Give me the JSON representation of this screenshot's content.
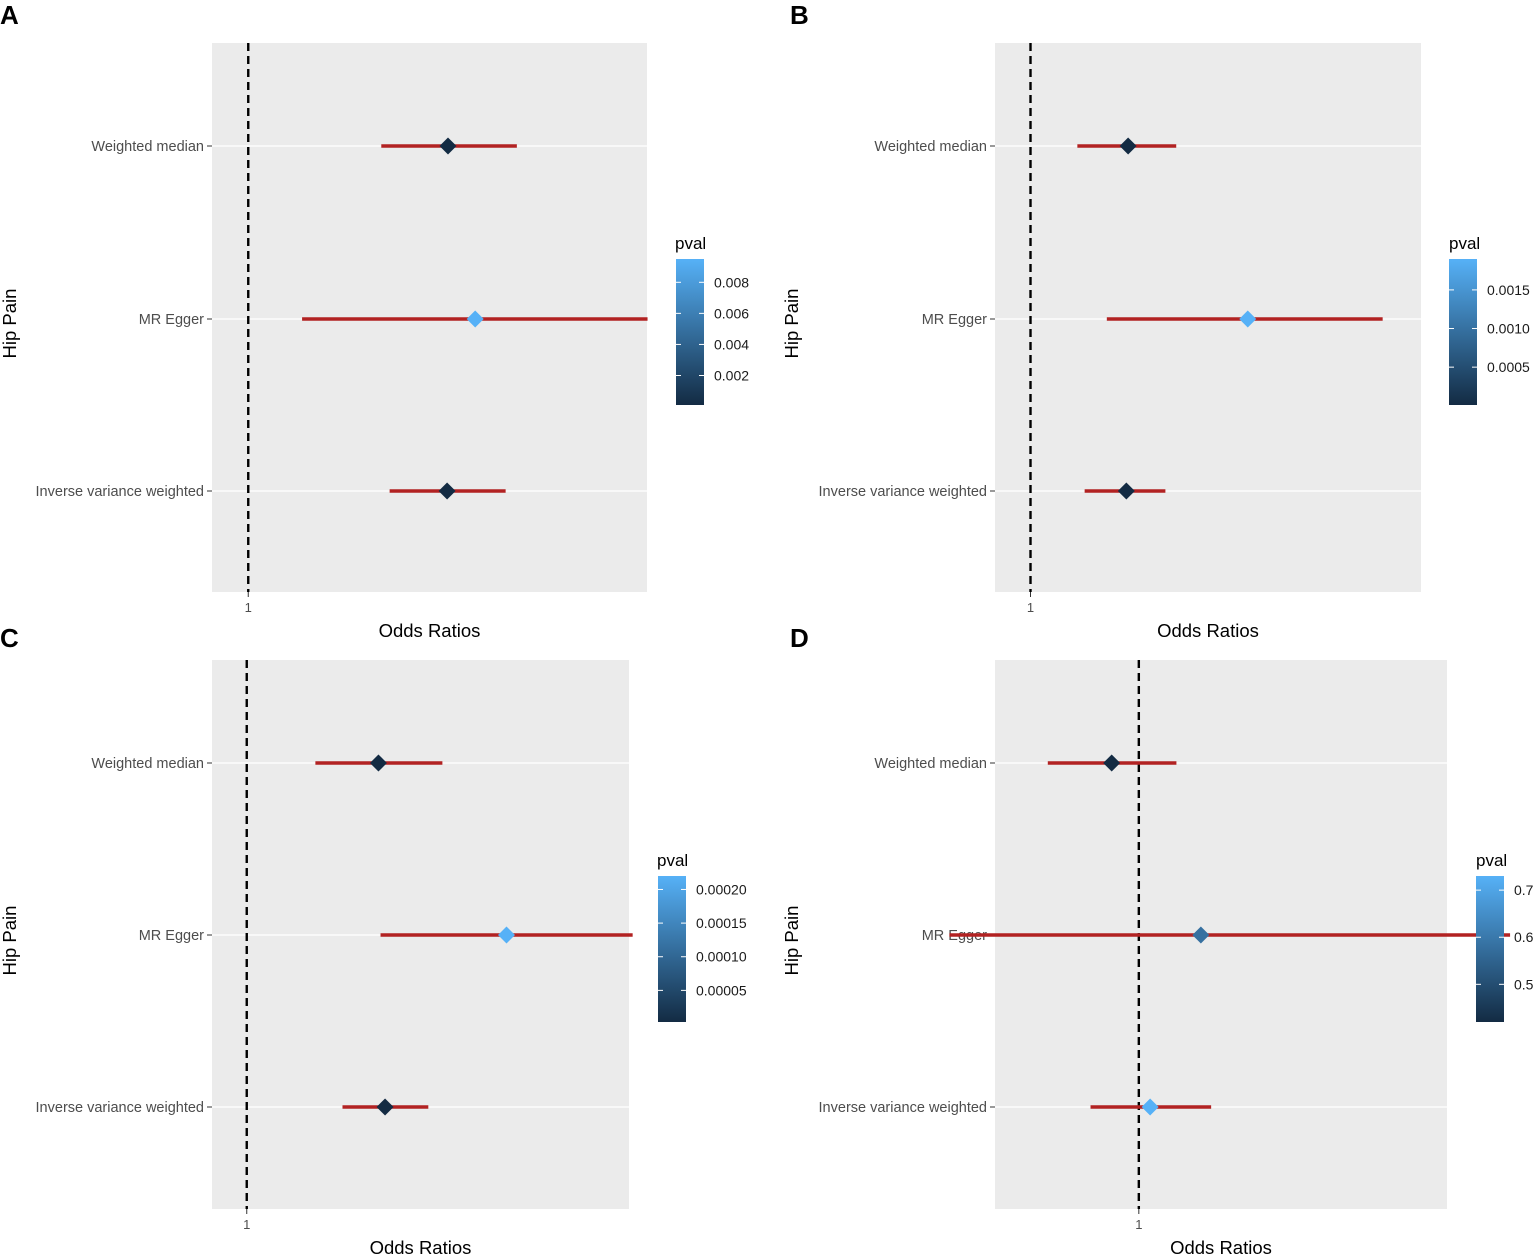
{
  "figure": {
    "description_panels": [
      "A",
      "B",
      "C",
      "D"
    ]
  },
  "colors": {
    "panel_bg": "#ebebeb",
    "grid": "#ffffff",
    "ci_line": "#b22222",
    "low_color": "#132b43",
    "high_color": "#56b1f7",
    "ref_line": "#000000"
  },
  "chart_data": [
    {
      "type": "forest",
      "panel": "A",
      "ylabel": "Hip Pain",
      "xlabel": "Odds Ratios",
      "categories": [
        "Weighted median",
        "MR Egger",
        "Inverse variance weighted"
      ],
      "x_tick_labels": [
        "1"
      ],
      "xlim": [
        0.98,
        1.22
      ],
      "or": [
        1.1102,
        1.1252,
        1.1097
      ],
      "ci_low": [
        1.0734,
        1.0297,
        1.078
      ],
      "ci_high": [
        1.1482,
        1.2203,
        1.142
      ],
      "pval": [
        0.0001,
        0.0095,
        0.0001
      ],
      "legend": {
        "title": "pval",
        "ticks": [
          0.002,
          0.004,
          0.006,
          0.008
        ],
        "tick_labels": [
          "0.002",
          "0.004",
          "0.006",
          "0.008"
        ],
        "range": [
          0.0001,
          0.0095
        ]
      }
    },
    {
      "type": "forest",
      "panel": "B",
      "ylabel": "Hip Pain",
      "xlabel": "Odds Ratios",
      "categories": [
        "Weighted median",
        "MR Egger",
        "Inverse variance weighted"
      ],
      "x_tick_labels": [
        "1"
      ],
      "xlim": [
        0.98,
        1.22
      ],
      "or": [
        1.055,
        1.1224,
        1.054
      ],
      "ci_low": [
        1.0264,
        1.043,
        1.0305
      ],
      "ci_high": [
        1.0821,
        1.1984,
        1.076
      ],
      "pval": [
        1e-05,
        0.0019,
        1e-05
      ],
      "legend": {
        "title": "pval",
        "ticks": [
          0.0005,
          0.001,
          0.0015
        ],
        "tick_labels": [
          "0.0005",
          "0.0010",
          "0.0015"
        ],
        "range": [
          1e-05,
          0.0019
        ]
      }
    },
    {
      "type": "forest",
      "panel": "C",
      "ylabel": "Hip Pain",
      "xlabel": "Odds Ratios",
      "categories": [
        "Weighted median",
        "MR Egger",
        "Inverse variance weighted"
      ],
      "x_tick_labels": [
        "1"
      ],
      "xlim": [
        0.98,
        1.22
      ],
      "or": [
        1.0758,
        1.1495,
        1.0796
      ],
      "ci_low": [
        1.0395,
        1.077,
        1.0551
      ],
      "ci_high": [
        1.1126,
        1.2221,
        1.1045
      ],
      "pval": [
        3e-06,
        0.00022,
        3e-06
      ],
      "legend": {
        "title": "pval",
        "ticks": [
          5e-05,
          0.0001,
          0.00015,
          0.0002
        ],
        "tick_labels": [
          "0.00005",
          "0.00010",
          "0.00015",
          "0.00020"
        ],
        "range": [
          3e-06,
          0.00022
        ]
      }
    },
    {
      "type": "forest",
      "panel": "D",
      "ylabel": "Hip Pain",
      "xlabel": "Odds Ratios",
      "categories": [
        "Weighted median",
        "MR Egger",
        "Inverse variance weighted"
      ],
      "x_tick_labels": [
        "1"
      ],
      "xlim": [
        0.93,
        1.15
      ],
      "or": [
        0.9868,
        1.0302,
        1.0055
      ],
      "ci_low": [
        0.9557,
        0.9078,
        0.9765
      ],
      "ci_high": [
        1.0183,
        1.1807,
        1.0352
      ],
      "pval": [
        0.42,
        0.58,
        0.73
      ],
      "legend": {
        "title": "pval",
        "ticks": [
          0.5,
          0.6,
          0.7
        ],
        "tick_labels": [
          "0.5",
          "0.6",
          "0.7"
        ],
        "range": [
          0.42,
          0.73
        ]
      }
    }
  ]
}
